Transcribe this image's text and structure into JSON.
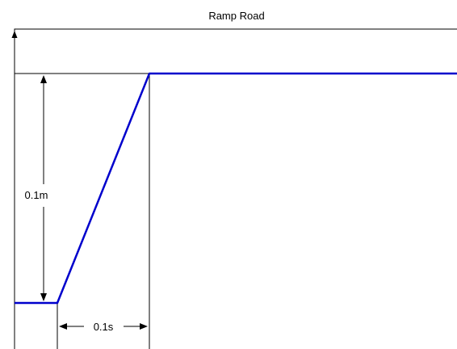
{
  "chart_data": {
    "type": "line",
    "title": "Ramp Road",
    "xlabel": "",
    "ylabel": "",
    "series": [
      {
        "x": [
          0,
          0.1,
          0.2,
          0.6
        ],
        "y": [
          0,
          0,
          0.1,
          0.1
        ]
      }
    ],
    "annotations": {
      "height_label": "0.1m",
      "duration_label": "0.1s"
    },
    "grid": false,
    "line_color": "#0000cc"
  }
}
